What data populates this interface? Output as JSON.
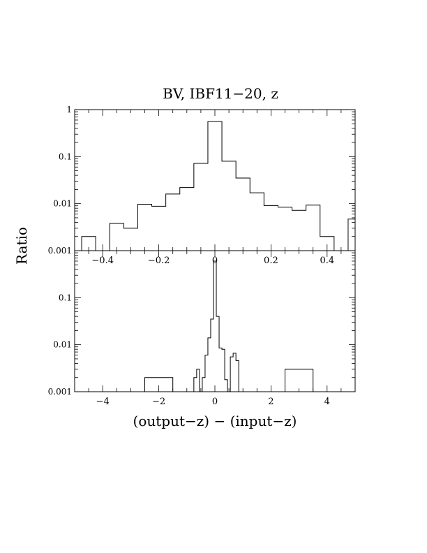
{
  "title": "BV, IBF11−20, z",
  "xlabel": "(output−z) − (input−z)",
  "ylabel": "Ratio",
  "chart_data": [
    {
      "type": "histogram",
      "panel": "top",
      "xlim": [
        -0.5,
        0.5
      ],
      "ylim": [
        0.001,
        1
      ],
      "yscale": "log",
      "xticks": [
        -0.4,
        -0.2,
        0,
        0.2,
        0.4
      ],
      "xtick_labels": [
        "−0.4",
        "−0.2",
        "0",
        "0.2",
        "0.4"
      ],
      "yticks": [
        0.001,
        0.01,
        0.1,
        1
      ],
      "ytick_labels": [
        "0.001",
        "0.01",
        "0.1",
        "1"
      ],
      "bin_edges": [
        -0.475,
        -0.425,
        -0.375,
        -0.325,
        -0.275,
        -0.225,
        -0.175,
        -0.125,
        -0.075,
        -0.025,
        0.025,
        0.075,
        0.125,
        0.175,
        0.225,
        0.275,
        0.325,
        0.375,
        0.425,
        0.475,
        0.5
      ],
      "values": [
        0.002,
        0.001,
        0.0038,
        0.003,
        0.0097,
        0.0088,
        0.016,
        0.022,
        0.072,
        0.56,
        0.08,
        0.035,
        0.017,
        0.0091,
        0.0084,
        0.0072,
        0.0093,
        0.002,
        0.001,
        0.0047
      ]
    },
    {
      "type": "histogram",
      "panel": "bottom",
      "xlim": [
        -5,
        5
      ],
      "ylim": [
        0.001,
        1
      ],
      "yscale": "log",
      "xticks": [
        -4,
        -2,
        0,
        2,
        4
      ],
      "xtick_labels": [
        "−4",
        "−2",
        "0",
        "2",
        "4"
      ],
      "yticks": [
        0.001,
        0.01,
        0.1
      ],
      "ytick_labels": [
        "0.001",
        "0.01",
        "0.1"
      ],
      "bin_edges": [
        -2.5,
        -1.5,
        -0.75,
        -0.65,
        -0.55,
        -0.45,
        -0.35,
        -0.25,
        -0.15,
        -0.05,
        0.05,
        0.15,
        0.25,
        0.35,
        0.45,
        0.55,
        0.65,
        0.75,
        0.85,
        0.95
      ],
      "values": [
        0.002,
        0.001,
        0.002,
        0.003,
        0.001,
        0.002,
        0.006,
        0.014,
        0.035,
        0.6,
        0.04,
        0.0085,
        0.008,
        0.0018,
        0.001,
        0.0055,
        0.0066,
        0.0046,
        0.001
      ],
      "extra_bins": [
        {
          "x0": 2.5,
          "x1": 3.5,
          "value": 0.003
        }
      ]
    }
  ]
}
